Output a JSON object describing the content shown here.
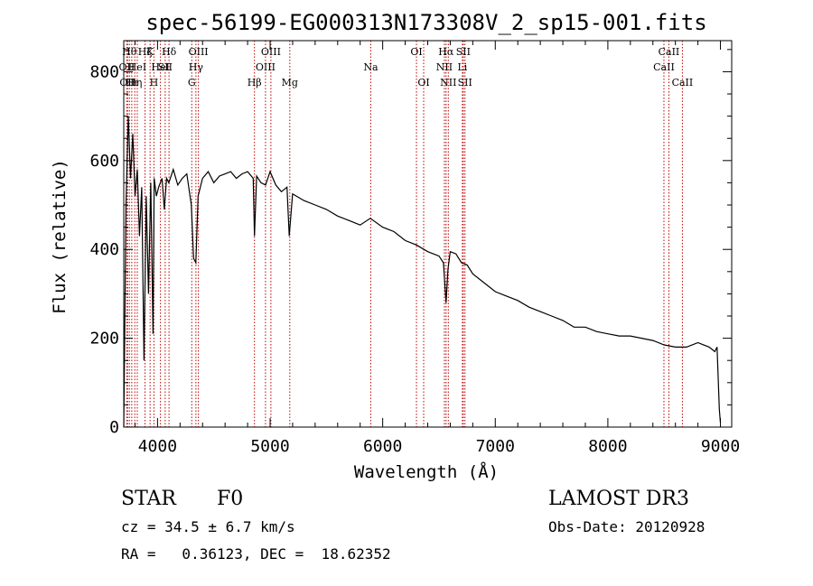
{
  "chart_data": {
    "type": "line",
    "title": "spec-56199-EG000313N173308V_2_sp15-001.fits",
    "xlabel": "Wavelength (Å)",
    "ylabel": "Flux (relative)",
    "xlim": [
      3700,
      9100
    ],
    "ylim": [
      0,
      870
    ],
    "xticks": [
      4000,
      5000,
      6000,
      7000,
      8000,
      9000
    ],
    "yticks": [
      0,
      200,
      400,
      600,
      800
    ],
    "series": [
      {
        "name": "flux",
        "x": [
          3700,
          3720,
          3740,
          3760,
          3780,
          3800,
          3820,
          3840,
          3860,
          3880,
          3900,
          3920,
          3940,
          3960,
          3970,
          3990,
          4010,
          4040,
          4060,
          4080,
          4100,
          4140,
          4180,
          4220,
          4260,
          4300,
          4320,
          4340,
          4360,
          4400,
          4450,
          4500,
          4550,
          4600,
          4650,
          4700,
          4750,
          4800,
          4850,
          4861,
          4880,
          4920,
          4960,
          5000,
          5050,
          5100,
          5150,
          5170,
          5200,
          5300,
          5400,
          5500,
          5600,
          5700,
          5800,
          5890,
          6000,
          6100,
          6200,
          6300,
          6400,
          6500,
          6540,
          6563,
          6580,
          6600,
          6650,
          6700,
          6750,
          6800,
          6900,
          7000,
          7100,
          7200,
          7300,
          7400,
          7500,
          7600,
          7700,
          7800,
          7900,
          8000,
          8100,
          8200,
          8300,
          8400,
          8500,
          8600,
          8700,
          8800,
          8900,
          8950,
          8970,
          8990,
          9000
        ],
        "y": [
          0,
          500,
          700,
          560,
          660,
          520,
          580,
          430,
          540,
          150,
          520,
          300,
          550,
          210,
          560,
          520,
          540,
          560,
          490,
          560,
          550,
          580,
          545,
          560,
          570,
          500,
          380,
          370,
          520,
          560,
          575,
          550,
          565,
          570,
          575,
          560,
          570,
          575,
          560,
          430,
          565,
          550,
          545,
          575,
          545,
          530,
          540,
          430,
          525,
          510,
          500,
          490,
          475,
          465,
          455,
          470,
          450,
          440,
          420,
          410,
          395,
          385,
          370,
          280,
          355,
          395,
          390,
          370,
          365,
          345,
          325,
          305,
          295,
          285,
          270,
          260,
          250,
          240,
          225,
          225,
          215,
          210,
          205,
          205,
          200,
          195,
          185,
          180,
          180,
          190,
          180,
          170,
          180,
          40,
          10
        ]
      }
    ],
    "line_marks": [
      {
        "w": 3727,
        "label": "OII",
        "row": 1
      },
      {
        "w": 3734,
        "label": "OII",
        "row": 2
      },
      {
        "w": 3750,
        "label": "Hθ",
        "row": 0
      },
      {
        "w": 3771,
        "label": "Hι",
        "row": 2
      },
      {
        "w": 3798,
        "label": "Hη",
        "row": 2
      },
      {
        "w": 3820,
        "label": "HeI",
        "row": 1
      },
      {
        "w": 3889,
        "label": "Hζ",
        "row": 0
      },
      {
        "w": 3934,
        "label": "K",
        "row": 0
      },
      {
        "w": 3968,
        "label": "H",
        "row": 2
      },
      {
        "w": 4026,
        "label": "HeI",
        "row": 1
      },
      {
        "w": 4068,
        "label": "SII",
        "row": 1
      },
      {
        "w": 4102,
        "label": "Hδ",
        "row": 0
      },
      {
        "w": 4304,
        "label": "G",
        "row": 2
      },
      {
        "w": 4341,
        "label": "Hγ",
        "row": 1
      },
      {
        "w": 4363,
        "label": "OIII",
        "row": 0
      },
      {
        "w": 4861,
        "label": "Hβ",
        "row": 2
      },
      {
        "w": 4959,
        "label": "OIII",
        "row": 1
      },
      {
        "w": 5007,
        "label": "OIII",
        "row": 0
      },
      {
        "w": 5175,
        "label": "Mg",
        "row": 2
      },
      {
        "w": 5894,
        "label": "Na",
        "row": 1
      },
      {
        "w": 6300,
        "label": "OI",
        "row": 0
      },
      {
        "w": 6364,
        "label": "OI",
        "row": 2
      },
      {
        "w": 6548,
        "label": "NII",
        "row": 1
      },
      {
        "w": 6563,
        "label": "Hα",
        "row": 0
      },
      {
        "w": 6583,
        "label": "NII",
        "row": 2
      },
      {
        "w": 6708,
        "label": "Li",
        "row": 1
      },
      {
        "w": 6716,
        "label": "SII",
        "row": 0
      },
      {
        "w": 6731,
        "label": "SII",
        "row": 2
      },
      {
        "w": 8498,
        "label": "CaII",
        "row": 1
      },
      {
        "w": 8542,
        "label": "CaII",
        "row": 0
      },
      {
        "w": 8662,
        "label": "CaII",
        "row": 2
      }
    ]
  },
  "info": {
    "object_class": "STAR",
    "subclass": "F0",
    "survey": "LAMOST DR3",
    "redshift": "cz = 34.5 ± 6.7 km/s",
    "obs_date": "Obs-Date: 20120928",
    "coordinates": "RA =   0.36123, DEC =  18.62352"
  }
}
